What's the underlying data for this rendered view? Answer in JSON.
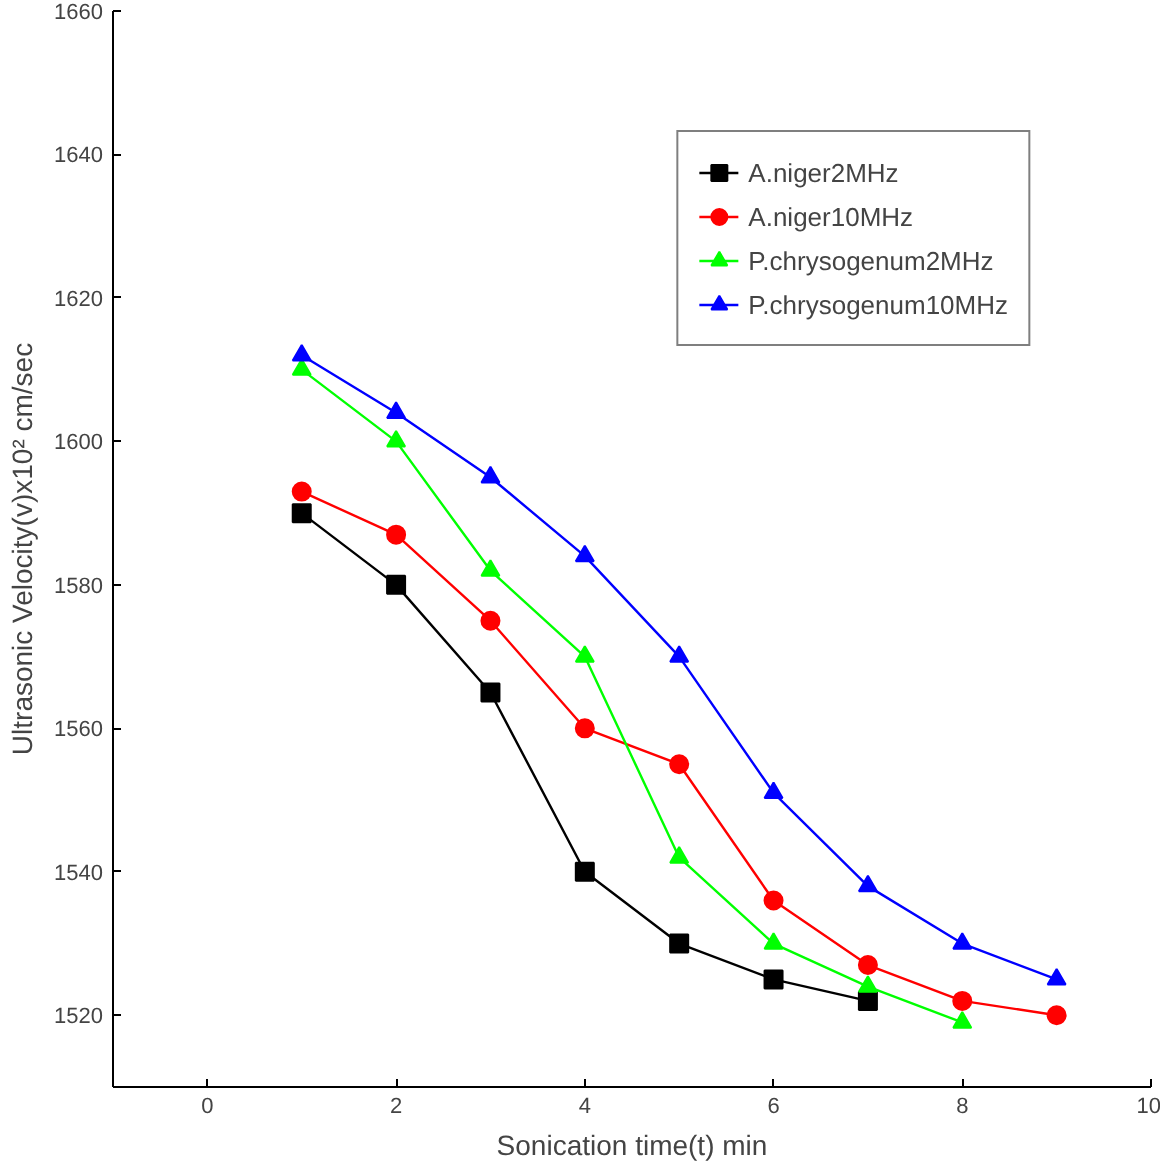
{
  "chart_data": {
    "type": "line",
    "xlabel": "Sonication time(t) min",
    "ylabel": "Ultrasonic Velocity(v)x10² cm/sec",
    "xlim": [
      -1,
      10
    ],
    "xticks": [
      0,
      2,
      4,
      6,
      8,
      10
    ],
    "ylim": [
      1510,
      1660
    ],
    "yticks": [
      1520,
      1540,
      1560,
      1580,
      1600,
      1620,
      1640,
      1660
    ],
    "grid": false,
    "legend": "top right",
    "line_style": "solid",
    "series": [
      {
        "name": "A.niger2MHz",
        "color": "#000000",
        "marker": "square",
        "x": [
          1,
          2,
          3,
          4,
          5,
          6,
          7
        ],
        "values": [
          1590,
          1580,
          1565,
          1540,
          1530,
          1525,
          1522
        ]
      },
      {
        "name": "A.niger10MHz",
        "color": "#ff0000",
        "marker": "circle",
        "x": [
          1,
          2,
          3,
          4,
          5,
          6,
          7,
          8,
          9
        ],
        "values": [
          1593,
          1587,
          1575,
          1560,
          1555,
          1536,
          1527,
          1522,
          1520
        ]
      },
      {
        "name": "P.chrysogenum2MHz",
        "color": "#00ff00",
        "marker": "triangle",
        "x": [
          1,
          2,
          3,
          4,
          5,
          6,
          7,
          8
        ],
        "values": [
          1610,
          1600,
          1582,
          1570,
          1542,
          1530,
          1524,
          1519
        ]
      },
      {
        "name": "P.chrysogenum10MHz",
        "color": "#0000ff",
        "marker": "triangle",
        "x": [
          1,
          2,
          3,
          4,
          5,
          6,
          7,
          8,
          9
        ],
        "values": [
          1612,
          1604,
          1595,
          1584,
          1570,
          1551,
          1538,
          1530,
          1525
        ]
      }
    ]
  }
}
